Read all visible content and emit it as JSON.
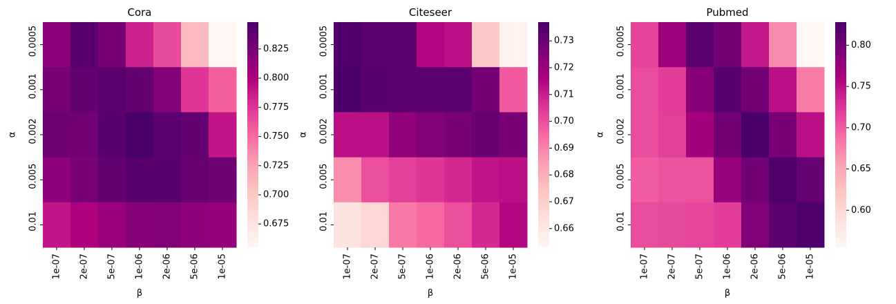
{
  "chart_data": [
    {
      "type": "heatmap",
      "title": "Cora",
      "xlabel": "β",
      "ylabel": "α",
      "colormap": "RdPu",
      "categories": [
        "1e-07",
        "2e-07",
        "5e-07",
        "1e-06",
        "2e-06",
        "5e-06",
        "1e-05"
      ],
      "rows": [
        "0.0005",
        "0.001",
        "0.002",
        "0.005",
        "0.01"
      ],
      "values": [
        [
          0.815,
          0.84,
          0.825,
          0.785,
          0.765,
          0.71,
          0.655
        ],
        [
          0.825,
          0.835,
          0.838,
          0.835,
          0.82,
          0.775,
          0.755
        ],
        [
          0.83,
          0.828,
          0.84,
          0.848,
          0.838,
          0.835,
          0.79
        ],
        [
          0.815,
          0.825,
          0.835,
          0.84,
          0.84,
          0.833,
          0.83
        ],
        [
          0.79,
          0.8,
          0.81,
          0.818,
          0.82,
          0.815,
          0.812
        ]
      ],
      "clim": [
        0.655,
        0.848
      ],
      "cticks": [
        0.675,
        {
          "value": 0.7,
          "label": "0.700"
        },
        0.725,
        {
          "value": 0.75,
          "label": "0.750"
        },
        0.775,
        {
          "value": 0.8,
          "label": "0.800"
        },
        0.825
      ]
    },
    {
      "type": "heatmap",
      "title": "Citeseer",
      "xlabel": "β",
      "ylabel": "α",
      "colormap": "RdPu",
      "categories": [
        "1e-07",
        "2e-07",
        "5e-07",
        "1e-06",
        "2e-06",
        "5e-06",
        "1e-05"
      ],
      "rows": [
        "0.0005",
        "0.001",
        "0.002",
        "0.005",
        "0.01"
      ],
      "values": [
        [
          0.735,
          0.733,
          0.733,
          0.715,
          0.713,
          0.672,
          0.655
        ],
        [
          0.737,
          0.734,
          0.733,
          0.733,
          0.733,
          0.728,
          0.698
        ],
        [
          0.713,
          0.713,
          0.722,
          0.725,
          0.727,
          0.73,
          0.727
        ],
        [
          0.688,
          0.7,
          0.703,
          0.705,
          0.708,
          0.712,
          0.713
        ],
        [
          0.662,
          0.667,
          0.692,
          0.695,
          0.7,
          0.708,
          0.715
        ]
      ],
      "clim": [
        0.653,
        0.737
      ],
      "cticks": [
        0.66,
        0.67,
        0.68,
        0.69,
        {
          "value": 0.7,
          "label": "0.70"
        },
        0.71,
        0.72,
        0.73
      ]
    },
    {
      "type": "heatmap",
      "title": "Pubmed",
      "xlabel": "β",
      "ylabel": "α",
      "colormap": "RdPu",
      "categories": [
        "1e-07",
        "2e-07",
        "5e-07",
        "1e-06",
        "2e-06",
        "5e-06",
        "1e-05"
      ],
      "rows": [
        "0.0005",
        "0.001",
        "0.002",
        "0.005",
        "0.01"
      ],
      "values": [
        [
          0.715,
          0.77,
          0.815,
          0.8,
          0.745,
          0.67,
          0.555
        ],
        [
          0.71,
          0.72,
          0.785,
          0.818,
          0.8,
          0.75,
          0.68
        ],
        [
          0.71,
          0.718,
          0.765,
          0.8,
          0.828,
          0.795,
          0.75
        ],
        [
          0.7,
          0.705,
          0.705,
          0.775,
          0.8,
          0.825,
          0.808
        ],
        [
          0.71,
          0.712,
          0.714,
          0.72,
          0.79,
          0.815,
          0.825
        ]
      ],
      "clim": [
        0.555,
        0.828
      ],
      "cticks": [
        {
          "value": 0.6,
          "label": "0.60"
        },
        0.65,
        {
          "value": 0.7,
          "label": "0.70"
        },
        0.75,
        {
          "value": 0.8,
          "label": "0.80"
        }
      ]
    }
  ]
}
